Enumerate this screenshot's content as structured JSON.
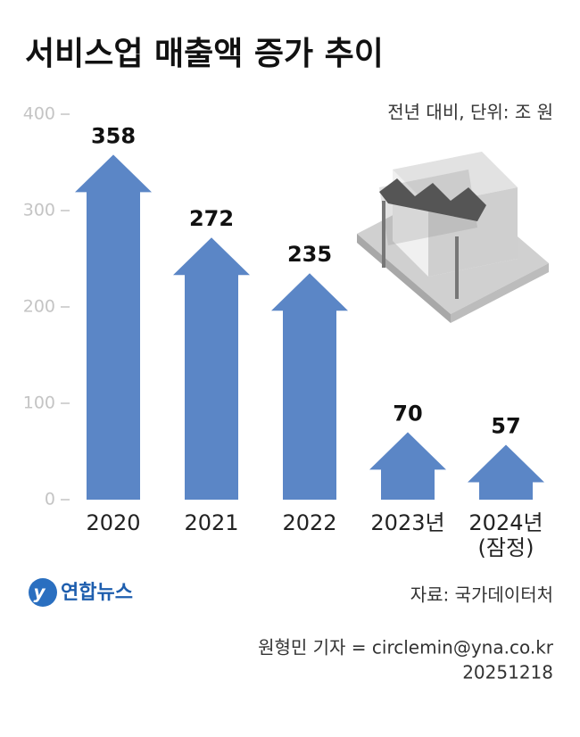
{
  "chart_data": {
    "type": "bar",
    "title": "서비스업 매출액 증가 추이",
    "subtitle": "전년 대비, 단위: 조 원",
    "categories": [
      "2020",
      "2021",
      "2022",
      "2023년",
      "2024년\n(잠정)"
    ],
    "values": [
      358,
      272,
      235,
      70,
      57
    ],
    "color": "#5b86c6",
    "ylim": [
      0,
      400
    ],
    "yticks": [
      0,
      100,
      200,
      300,
      400
    ]
  },
  "footer": {
    "logo": "연합뉴스",
    "source": "자료: 국가데이터처",
    "credit": "원형민 기자 = circlemin@yna.co.kr",
    "date": "20251218"
  }
}
